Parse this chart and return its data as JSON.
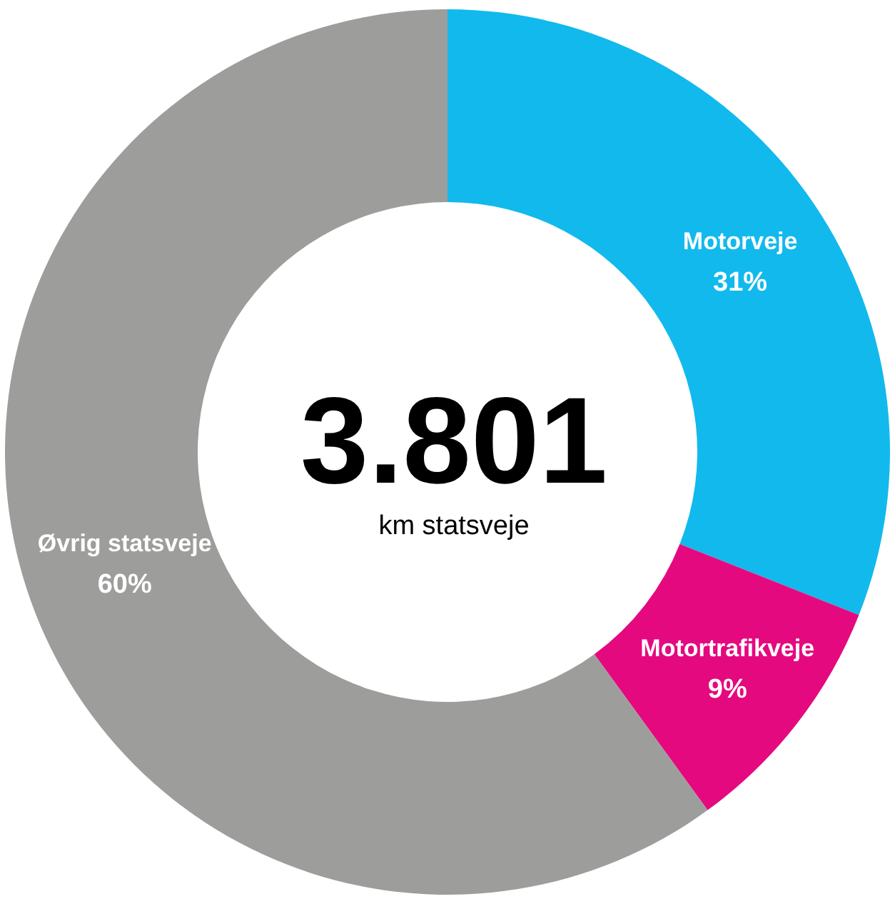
{
  "chart_data": {
    "type": "donut",
    "categories": [
      "Motorveje",
      "Motortrafikveje",
      "Øvrig statsveje"
    ],
    "values": [
      31,
      9,
      60
    ],
    "colors": [
      "#12b9ec",
      "#e5097f",
      "#9d9d9c"
    ],
    "value_labels": [
      "31%",
      "9%",
      "60%"
    ],
    "annotations": [
      "3.801",
      "km statsveje"
    ]
  }
}
